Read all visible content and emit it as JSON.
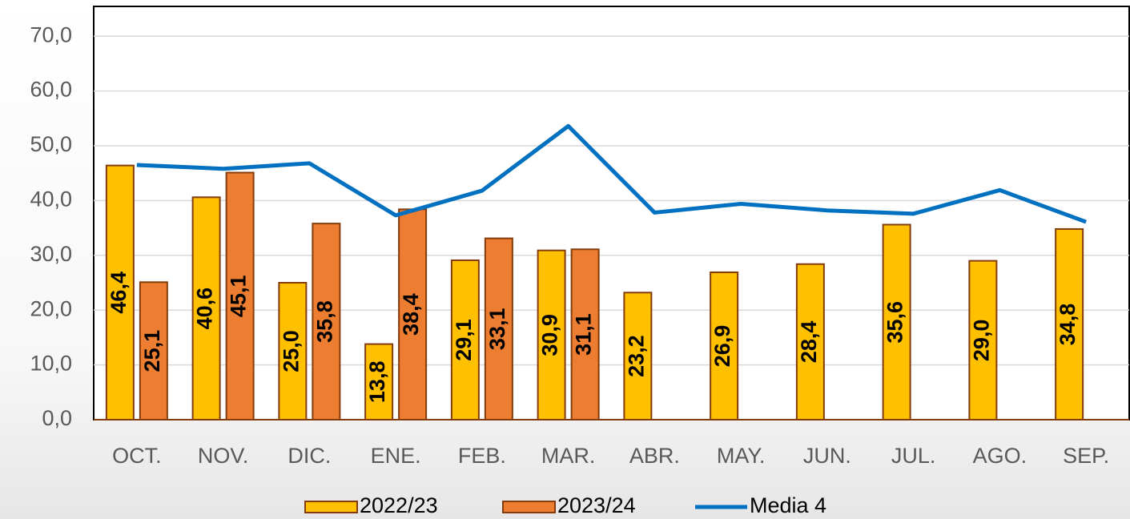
{
  "chart_data": {
    "type": "bar",
    "categories": [
      "OCT.",
      "NOV.",
      "DIC.",
      "ENE.",
      "FEB.",
      "MAR.",
      "ABR.",
      "MAY.",
      "JUN.",
      "JUL.",
      "AGO.",
      "SEP."
    ],
    "series": [
      {
        "name": "2022/23",
        "color": "#ffc000",
        "values": [
          46.4,
          40.6,
          25.0,
          13.8,
          29.1,
          30.9,
          23.2,
          26.9,
          28.4,
          35.6,
          29.0,
          34.8
        ],
        "value_labels": [
          "46,4",
          "40,6",
          "25,0",
          "13,8",
          "29,1",
          "30,9",
          "23,2",
          "26,9",
          "28,4",
          "35,6",
          "29,0",
          "34,8"
        ]
      },
      {
        "name": "2023/24",
        "color": "#ed7d31",
        "values": [
          25.1,
          45.1,
          35.8,
          38.4,
          33.1,
          31.1,
          null,
          null,
          null,
          null,
          null,
          null
        ],
        "value_labels": [
          "25,1",
          "45,1",
          "35,8",
          "38,4",
          "33,1",
          "31,1",
          null,
          null,
          null,
          null,
          null,
          null
        ]
      },
      {
        "name": "Media 4",
        "color": "#0070c0",
        "type": "line",
        "values": [
          46.5,
          45.8,
          46.8,
          37.3,
          41.8,
          53.6,
          37.8,
          39.4,
          38.2,
          37.6,
          41.9,
          36.1
        ]
      }
    ],
    "ylim": [
      0,
      75
    ],
    "yticks": [
      {
        "value": 0,
        "label": "0,0"
      },
      {
        "value": 10,
        "label": "10,0"
      },
      {
        "value": 20,
        "label": "20,0"
      },
      {
        "value": 30,
        "label": "30,0"
      },
      {
        "value": 40,
        "label": "40,0"
      },
      {
        "value": 50,
        "label": "50,0"
      },
      {
        "value": 60,
        "label": "60,0"
      },
      {
        "value": 70,
        "label": "70,0"
      }
    ],
    "grid": true,
    "legend": "bottom"
  }
}
